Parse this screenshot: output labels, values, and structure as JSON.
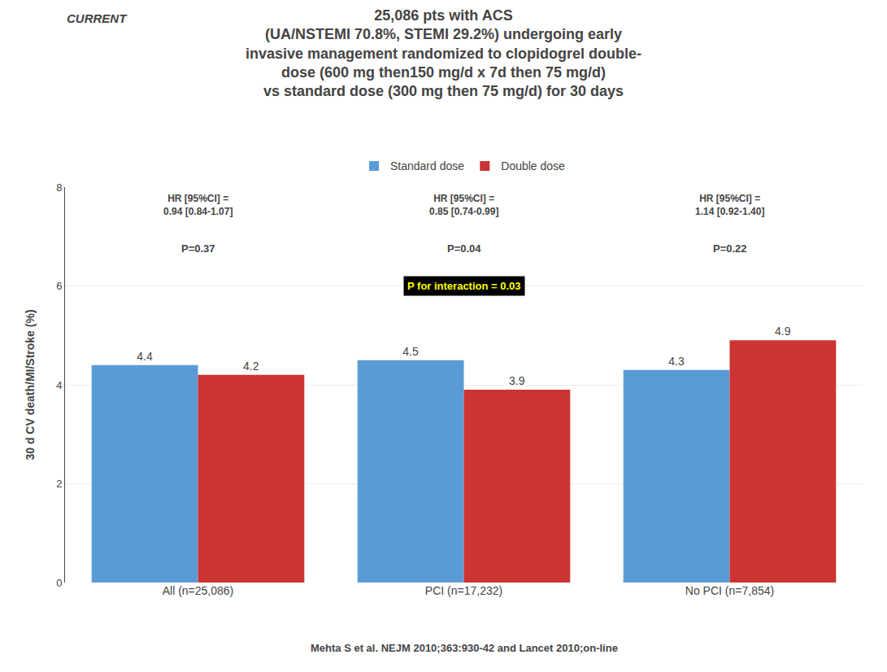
{
  "chart_data": {
    "type": "bar",
    "title": "25,086 pts with ACS\n(UA/NSTEMI 70.8%, STEMI 29.2%) undergoing early\ninvasive management randomized to clopidogrel double-\ndose (600 mg then150 mg/d x 7d then 75 mg/d)\nvs standard dose (300 mg then 75 mg/d) for 30 days",
    "categories": [
      "All (n=25,086)",
      "PCI (n=17,232)",
      "No PCI (n=7,854)"
    ],
    "series": [
      {
        "name": "Standard dose",
        "color": "#5b9bd5",
        "values": [
          4.4,
          4.5,
          4.3
        ]
      },
      {
        "name": "Double dose",
        "color": "#cc3333",
        "values": [
          4.2,
          3.9,
          4.9
        ]
      }
    ],
    "y_label": "30 d CV death/MI/Stroke (%)",
    "ylim": [
      0,
      8
    ],
    "yticks": [
      0,
      2,
      4,
      6,
      8
    ],
    "grid": true,
    "legend": "top",
    "data_labels": true,
    "annotations": [
      {
        "category": "All (n=25,086)",
        "text": "HR [95%CI] =\n0.94 [0.84-1.07]"
      },
      {
        "category": "All (n=25,086)",
        "text": "P=0.37"
      },
      {
        "category": "PCI (n=17,232)",
        "text": "HR [95%CI] =\n0.85 [0.74-0.99]"
      },
      {
        "category": "PCI (n=17,232)",
        "text": "P=0.04"
      },
      {
        "category": "No PCI (n=7,854)",
        "text": "HR [95%CI] =\n1.14 [0.92-1.40]"
      },
      {
        "category": "No PCI (n=7,854)",
        "text": "P=0.22"
      },
      {
        "category": "PCI (n=17,232)",
        "text": "P for interaction = 0.03"
      },
      {
        "text": "CURRENT"
      },
      {
        "text": "Mehta S et al. NEJM 2010;363:930-42 and Lancet 2010;on-line"
      }
    ]
  }
}
